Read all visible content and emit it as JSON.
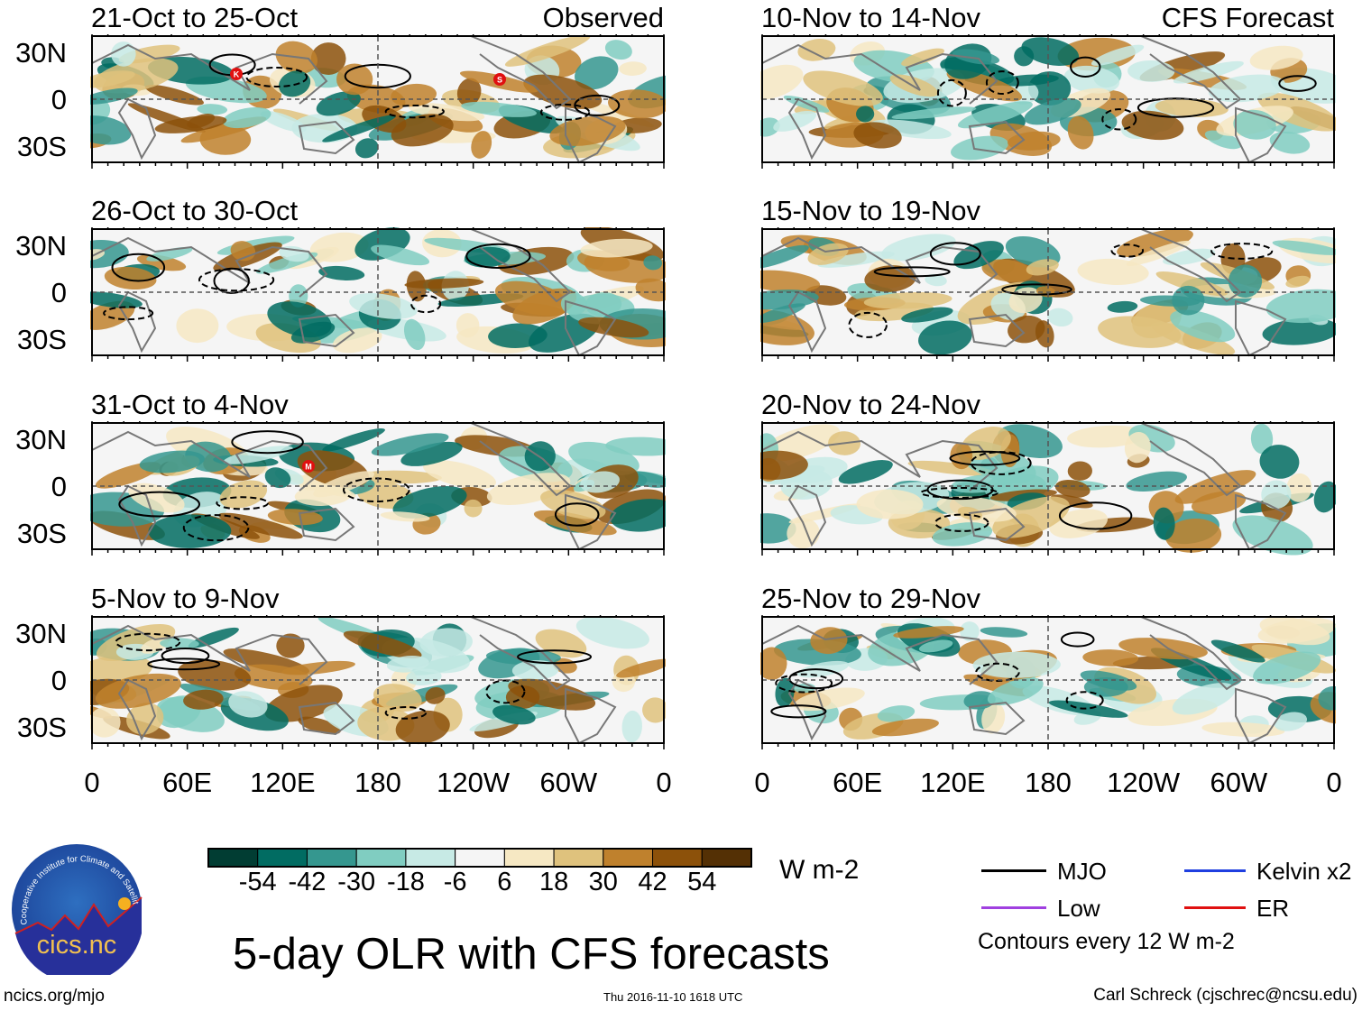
{
  "figure_title": "5-day OLR with CFS forecasts",
  "left_column_label": "Observed",
  "right_column_label": "CFS Forecast",
  "panels_left": [
    {
      "title": "21-Oct to 25-Oct",
      "storms": [
        "K",
        "S"
      ]
    },
    {
      "title": "26-Oct to 30-Oct",
      "storms": []
    },
    {
      "title": "31-Oct to 4-Nov",
      "storms": [
        "M"
      ]
    },
    {
      "title": "5-Nov to 9-Nov",
      "storms": []
    }
  ],
  "panels_right": [
    {
      "title": "10-Nov to 14-Nov"
    },
    {
      "title": "15-Nov to 19-Nov"
    },
    {
      "title": "20-Nov to 24-Nov"
    },
    {
      "title": "25-Nov to 29-Nov"
    }
  ],
  "lat_labels": [
    "30N",
    "0",
    "30S"
  ],
  "lon_labels": [
    "0",
    "60E",
    "120E",
    "180",
    "120W",
    "60W",
    "0"
  ],
  "colorbar": {
    "colors": [
      "#013d33",
      "#016c62",
      "#35978f",
      "#80cdc1",
      "#c7eae5",
      "#f5f5f5",
      "#f6e8c3",
      "#dfc27d",
      "#bf812d",
      "#8c510a",
      "#543005"
    ],
    "labels": [
      "-54",
      "-42",
      "-30",
      "-18",
      "-6",
      "6",
      "18",
      "30",
      "42",
      "54"
    ],
    "units": "W m-2"
  },
  "legend": {
    "items": [
      {
        "label": "MJO",
        "color": "#000000"
      },
      {
        "label": "Kelvin x2",
        "color": "#1f3fe0"
      },
      {
        "label": "Low",
        "color": "#a040e0"
      },
      {
        "label": "ER",
        "color": "#e01010"
      }
    ],
    "note": "Contours every 12 W m-2"
  },
  "logo": {
    "text": "cics.nc",
    "ring_text": "Cooperative Institute for Climate and Satellites"
  },
  "footer": {
    "url": "ncics.org/mjo",
    "timestamp": "Thu 2016-11-10 1618 UTC",
    "author": "Carl Schreck (cjschrec@ncsu.edu)"
  }
}
